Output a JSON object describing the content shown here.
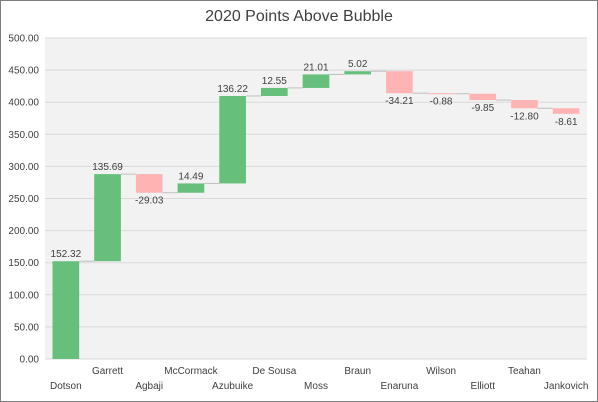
{
  "chart_data": {
    "type": "waterfall",
    "title": "2020 Points Above Bubble",
    "xlabel": "",
    "ylabel": "",
    "ylim": [
      0,
      500
    ],
    "yticks": [
      "0.00",
      "50.00",
      "100.00",
      "150.00",
      "200.00",
      "250.00",
      "300.00",
      "350.00",
      "400.00",
      "450.00",
      "500.00"
    ],
    "categories": [
      "Dotson",
      "Garrett",
      "Agbaji",
      "McCormack",
      "Azubuike",
      "De Sousa",
      "Moss",
      "Braun",
      "Enaruna",
      "Wilson",
      "Elliott",
      "Teahan",
      "Jankovich"
    ],
    "values": [
      152.32,
      135.69,
      -29.03,
      14.49,
      136.22,
      12.55,
      21.01,
      5.02,
      -34.21,
      -0.88,
      -9.85,
      -12.8,
      -8.61
    ],
    "labels": [
      "152.32",
      "135.69",
      "-29.03",
      "14.49",
      "136.22",
      "12.55",
      "21.01",
      "5.02",
      "-34.21",
      "-0.88",
      "-9.85",
      "-12.80",
      "-8.61"
    ],
    "colors": {
      "increase": "#66c07b",
      "decrease": "#ffb3b3",
      "gridline": "#d9d9d9",
      "connector": "#bfbfbf"
    },
    "grid": true,
    "legend": "none"
  }
}
